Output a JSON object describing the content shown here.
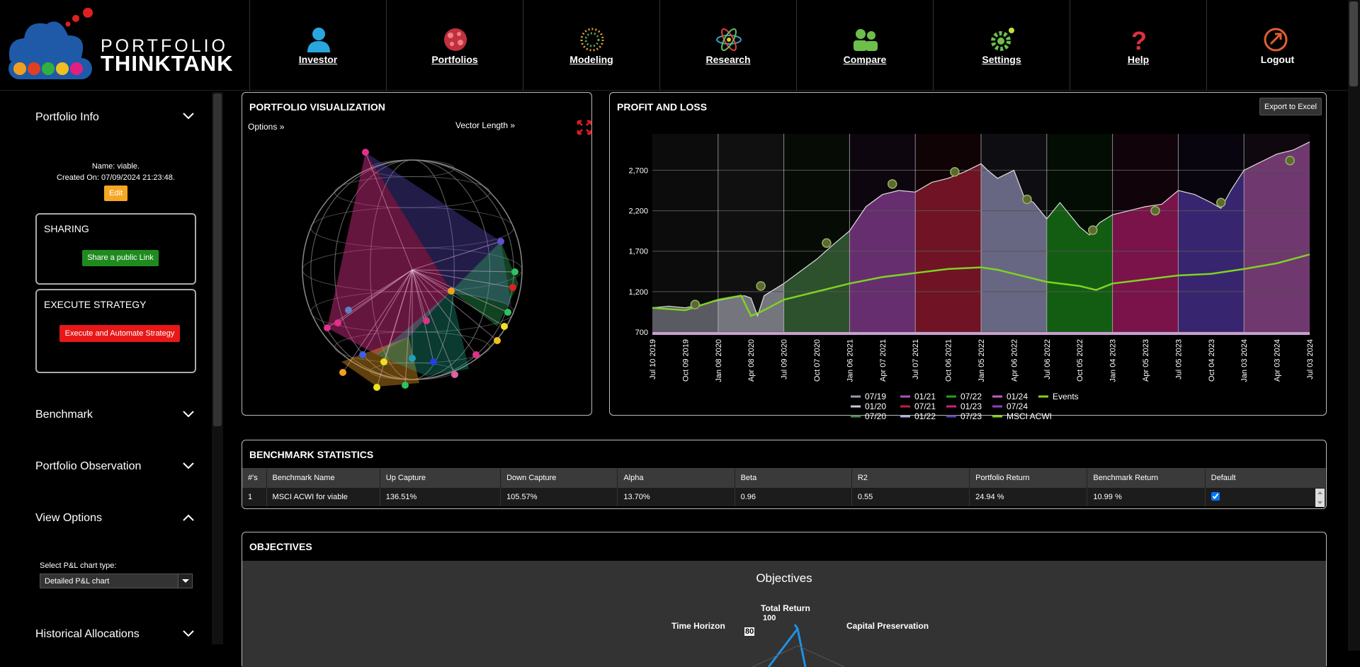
{
  "logo": {
    "line1": "PORTFOLIO",
    "line2": "THINKTANK"
  },
  "nav": [
    {
      "label": "Investor",
      "icon": "investor-icon",
      "color": "#2aa6de"
    },
    {
      "label": "Portfolios",
      "icon": "portfolios-icon",
      "color": "#e05050"
    },
    {
      "label": "Modeling",
      "icon": "modeling-icon",
      "color": "#d8a030"
    },
    {
      "label": "Research",
      "icon": "research-icon",
      "color": "#40a0c0"
    },
    {
      "label": "Compare",
      "icon": "compare-icon",
      "color": "#6cc04a"
    },
    {
      "label": "Settings",
      "icon": "gear-icon",
      "color": "#6cc04a"
    },
    {
      "label": "Help",
      "icon": "help-icon",
      "color": "#e03040"
    },
    {
      "label": "Logout",
      "icon": "logout-icon",
      "color": "#e06030"
    }
  ],
  "sidebar": {
    "portfolio_info": "Portfolio Info",
    "name_line": "Name: viable.",
    "created_line": "Created On: 07/09/2024 21:23:48.",
    "edit_label": "Edit",
    "sharing_title": "SHARING",
    "share_label": "Share a public Link",
    "execute_title": "EXECUTE STRATEGY",
    "execute_label": "Execute and Automate Strategy",
    "benchmark": "Benchmark",
    "observation": "Portfolio Observation",
    "view_options": "View Options",
    "pl_chart_type_label": "Select P&L chart type:",
    "pl_chart_type_value": "Detailed P&L chart",
    "historical": "Historical Allocations"
  },
  "viz": {
    "title": "PORTFOLIO VISUALIZATION",
    "options": "Options »",
    "vector_length": "Vector Length »"
  },
  "pnl": {
    "title": "PROFIT AND LOSS",
    "export_label": "Export to Excel"
  },
  "chart_data": {
    "type": "line",
    "yticks": [
      700,
      1200,
      1700,
      2200,
      2700
    ],
    "ylim": [
      700,
      3150
    ],
    "xticks": [
      "Jul 10 2019",
      "Oct 09 2019",
      "Jan 08 2020",
      "Apr 08 2020",
      "Jul 09 2020",
      "Oct 07 2020",
      "Jan 06 2021",
      "Apr 07 2021",
      "Jul 07 2021",
      "Oct 06 2021",
      "Jan 05 2022",
      "Apr 06 2022",
      "Jul 06 2022",
      "Oct 05 2022",
      "Jan 04 2023",
      "Apr 05 2023",
      "Jul 05 2023",
      "Oct 04 2023",
      "Jan 03 2024",
      "Apr 03 2024",
      "Jul 03 2024"
    ],
    "legend": [
      {
        "name": "07/19",
        "color": "#9a9aac"
      },
      {
        "name": "01/20",
        "color": "#c8c8d8"
      },
      {
        "name": "07/20",
        "color": "#4e8a4e"
      },
      {
        "name": "01/21",
        "color": "#b050c0"
      },
      {
        "name": "07/21",
        "color": "#c02040"
      },
      {
        "name": "01/22",
        "color": "#b0b0e0"
      },
      {
        "name": "07/22",
        "color": "#20a020"
      },
      {
        "name": "01/23",
        "color": "#d02080"
      },
      {
        "name": "07/23",
        "color": "#6040c0"
      },
      {
        "name": "01/24",
        "color": "#c060c0"
      },
      {
        "name": "07/24",
        "color": "#9040c0"
      },
      {
        "name": "MSCI ACWI",
        "color": "#7ed321"
      },
      {
        "name": "Events",
        "color": "#7ed321"
      }
    ],
    "portfolio": [
      [
        0,
        1000
      ],
      [
        0.5,
        1020
      ],
      [
        1,
        1000
      ],
      [
        1.5,
        1040
      ],
      [
        2,
        1090
      ],
      [
        2.5,
        1130
      ],
      [
        2.8,
        1150
      ],
      [
        3,
        1120
      ],
      [
        3.2,
        900
      ],
      [
        3.4,
        1150
      ],
      [
        4,
        1300
      ],
      [
        4.5,
        1450
      ],
      [
        5,
        1600
      ],
      [
        5.5,
        1780
      ],
      [
        6,
        1950
      ],
      [
        6.5,
        2250
      ],
      [
        7,
        2400
      ],
      [
        7.5,
        2450
      ],
      [
        8,
        2430
      ],
      [
        8.5,
        2550
      ],
      [
        9,
        2600
      ],
      [
        9.5,
        2680
      ],
      [
        10,
        2780
      ],
      [
        10.2,
        2700
      ],
      [
        10.5,
        2600
      ],
      [
        11,
        2700
      ],
      [
        11.3,
        2380
      ],
      [
        11.6,
        2300
      ],
      [
        12,
        2100
      ],
      [
        12.4,
        2300
      ],
      [
        13,
        2000
      ],
      [
        13.3,
        1900
      ],
      [
        13.6,
        2050
      ],
      [
        14,
        2150
      ],
      [
        14.5,
        2200
      ],
      [
        15,
        2250
      ],
      [
        15.5,
        2280
      ],
      [
        16,
        2450
      ],
      [
        16.5,
        2400
      ],
      [
        17,
        2300
      ],
      [
        17.3,
        2230
      ],
      [
        17.6,
        2450
      ],
      [
        18,
        2700
      ],
      [
        18.5,
        2800
      ],
      [
        19,
        2900
      ],
      [
        19.5,
        2950
      ],
      [
        20,
        3050
      ]
    ],
    "benchmark": [
      [
        0,
        1000
      ],
      [
        1,
        970
      ],
      [
        2,
        1100
      ],
      [
        2.7,
        1150
      ],
      [
        3,
        900
      ],
      [
        3.3,
        950
      ],
      [
        4,
        1100
      ],
      [
        5,
        1200
      ],
      [
        6,
        1300
      ],
      [
        7,
        1380
      ],
      [
        8,
        1430
      ],
      [
        9,
        1480
      ],
      [
        10,
        1500
      ],
      [
        10.5,
        1470
      ],
      [
        11,
        1420
      ],
      [
        12,
        1320
      ],
      [
        13,
        1270
      ],
      [
        13.5,
        1220
      ],
      [
        14,
        1300
      ],
      [
        15,
        1350
      ],
      [
        16,
        1400
      ],
      [
        17,
        1420
      ],
      [
        18,
        1480
      ],
      [
        19,
        1550
      ],
      [
        20,
        1660
      ]
    ],
    "events": [
      [
        1.3,
        1040
      ],
      [
        3.3,
        1270
      ],
      [
        5.3,
        1800
      ],
      [
        7.3,
        2530
      ],
      [
        9.2,
        2680
      ],
      [
        11.4,
        2340
      ],
      [
        13.4,
        1960
      ],
      [
        15.3,
        2200
      ],
      [
        17.3,
        2300
      ],
      [
        19.4,
        2820
      ]
    ]
  },
  "benchmark_stats": {
    "title": "BENCHMARK STATISTICS",
    "headers": [
      "#'s",
      "Benchmark Name",
      "Up Capture",
      "Down Capture",
      "Alpha",
      "Beta",
      "R2",
      "Portfolio Return",
      "Benchmark Return",
      "Default"
    ],
    "rows": [
      [
        "1",
        "MSCI ACWI for viable",
        "136.51%",
        "105.57%",
        "13.70%",
        "0.96",
        "0.55",
        "24.94 %",
        "10.99 %"
      ]
    ]
  },
  "objectives": {
    "title": "OBJECTIVES",
    "chart_title": "Objectives",
    "axis_top": "Total Return",
    "axis_left": "Time Horizon",
    "axis_right": "Capital Preservation",
    "ticks": [
      "100",
      "80"
    ]
  }
}
